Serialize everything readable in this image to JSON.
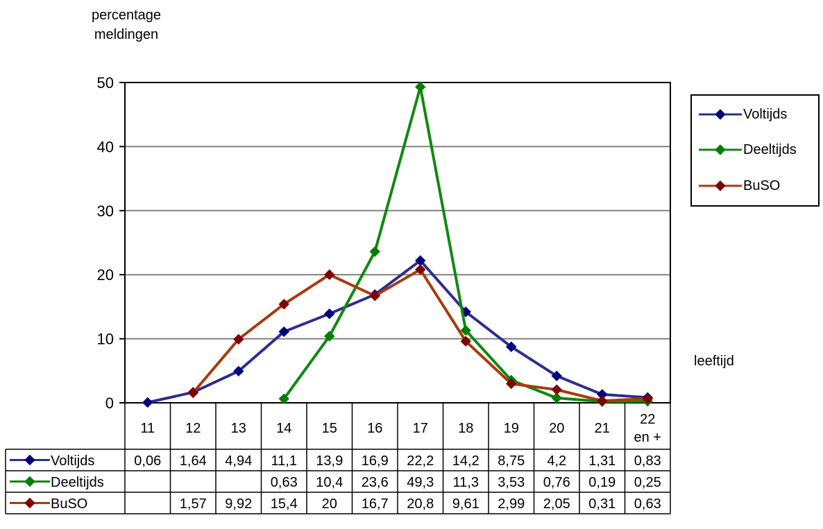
{
  "chart_data": {
    "type": "line",
    "ylabel_lines": [
      "percentage",
      "meldingen"
    ],
    "xlabel": "leeftijd",
    "categories": [
      "11",
      "12",
      "13",
      "14",
      "15",
      "16",
      "17",
      "18",
      "19",
      "20",
      "21",
      "22 en +"
    ],
    "ylim": [
      0,
      50
    ],
    "yticks": [
      0,
      10,
      20,
      30,
      40,
      50
    ],
    "grid": true,
    "legend_position": "right",
    "series": [
      {
        "name": "Voltijds",
        "color": "#2e2e8f",
        "values": [
          0.06,
          1.64,
          4.94,
          11.1,
          13.9,
          16.9,
          22.2,
          14.2,
          8.75,
          4.2,
          1.31,
          0.83
        ],
        "labels": [
          "0,06",
          "1,64",
          "4,94",
          "11,1",
          "13,9",
          "16,9",
          "22,2",
          "14,2",
          "8,75",
          "4,2",
          "1,31",
          "0,83"
        ]
      },
      {
        "name": "Deeltijds",
        "color": "#118811",
        "values": [
          null,
          null,
          null,
          0.63,
          10.4,
          23.6,
          49.3,
          11.3,
          3.53,
          0.76,
          0.19,
          0.25
        ],
        "labels": [
          "",
          "",
          "",
          "0,63",
          "10,4",
          "23,6",
          "49,3",
          "11,3",
          "3,53",
          "0,76",
          "0,19",
          "0,25"
        ]
      },
      {
        "name": "BuSO",
        "color": "#a83a10",
        "values": [
          null,
          1.57,
          9.92,
          15.4,
          20,
          16.7,
          20.8,
          9.61,
          2.99,
          2.05,
          0.31,
          0.63
        ],
        "labels": [
          "",
          "1,57",
          "9,92",
          "15,4",
          "20",
          "16,7",
          "20,8",
          "9,61",
          "2,99",
          "2,05",
          "0,31",
          "0,63"
        ]
      }
    ],
    "marker_color": "#8b0000",
    "marker_colors": {
      "Voltijds": "#00007f",
      "Deeltijds": "#007f00",
      "BuSO": "#7f0000"
    }
  }
}
